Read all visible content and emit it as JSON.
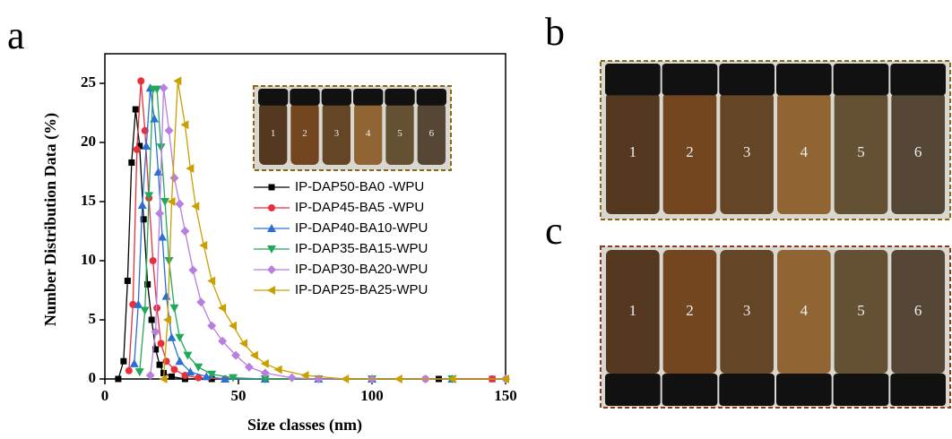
{
  "panel_labels": [
    "a",
    "b",
    "c"
  ],
  "chart_data": {
    "type": "line",
    "xlabel": "Size classes (nm)",
    "ylabel": "Number Distribution Data (%)",
    "xlim": [
      0,
      150
    ],
    "xticks": [
      0,
      50,
      100,
      150
    ],
    "ylim": [
      0,
      27.5
    ],
    "yticks": [
      0,
      5,
      10,
      15,
      20,
      25
    ],
    "legend": "right",
    "series": [
      {
        "name": "IP-DAP50-BA0 -WPU",
        "color": "#000000",
        "marker": "square",
        "x": [
          5,
          7,
          8.5,
          10,
          11.5,
          13,
          14.5,
          16,
          17.5,
          19,
          20.5,
          22,
          25,
          30,
          40,
          60,
          80,
          100,
          125,
          145
        ],
        "values": [
          0,
          1.5,
          8.3,
          18.3,
          22.8,
          19.7,
          13.5,
          8,
          5,
          2.5,
          1.2,
          0.5,
          0.2,
          0,
          0,
          0,
          0,
          0,
          0,
          0
        ]
      },
      {
        "name": "IP-DAP45-BA5 -WPU",
        "color": "#e8303a",
        "marker": "circle",
        "x": [
          9,
          10.5,
          12,
          13.5,
          15,
          16.5,
          18,
          19.5,
          21,
          23,
          26,
          30,
          35,
          45,
          60,
          80,
          100,
          120,
          145
        ],
        "values": [
          0.7,
          6.3,
          19.4,
          25.2,
          21,
          15.3,
          10,
          6,
          3,
          1.5,
          0.8,
          0.3,
          0.1,
          0,
          0,
          0,
          0,
          0,
          0
        ]
      },
      {
        "name": "IP-DAP40-BA10-WPU",
        "color": "#2b6fd6",
        "marker": "triangle-up",
        "x": [
          11,
          12.5,
          14,
          15.5,
          17,
          18.5,
          20,
          21.5,
          23,
          25,
          28,
          32,
          38,
          45,
          60,
          80,
          100,
          130
        ],
        "values": [
          1.3,
          6.3,
          14.7,
          19.7,
          24.6,
          22,
          17.5,
          12,
          7,
          3.5,
          1.5,
          0.6,
          0.2,
          0,
          0,
          0,
          0,
          0
        ]
      },
      {
        "name": "IP-DAP35-BA15-WPU",
        "color": "#22a85a",
        "marker": "triangle-down",
        "x": [
          13,
          15,
          16.5,
          18,
          19.5,
          21,
          22.5,
          24,
          26,
          28,
          31,
          35,
          40,
          48,
          60,
          80,
          100,
          130
        ],
        "values": [
          0.6,
          5.8,
          15.5,
          24.5,
          24.5,
          19.6,
          15,
          10,
          6,
          3.5,
          2,
          1,
          0.4,
          0.1,
          0,
          0,
          0,
          0
        ]
      },
      {
        "name": "IP-DAP30-BA20-WPU",
        "color": "#b77fe0",
        "marker": "diamond",
        "x": [
          17,
          19,
          20.5,
          22,
          24,
          26,
          28,
          30,
          33,
          36,
          40,
          44,
          49,
          54,
          60,
          70,
          80,
          100,
          120,
          150
        ],
        "values": [
          0.3,
          4,
          14,
          24.6,
          21,
          17,
          14.8,
          12.5,
          9.2,
          6.5,
          4.5,
          3.2,
          2,
          1,
          0.5,
          0.1,
          0,
          0,
          0,
          0
        ]
      },
      {
        "name": "IP-DAP25-BA25-WPU",
        "color": "#c9a000",
        "marker": "triangle-left",
        "x": [
          22,
          23.5,
          25,
          27.3,
          30,
          32,
          34,
          37,
          40,
          44,
          48,
          52,
          56,
          60,
          65,
          75,
          90,
          110,
          130,
          150
        ],
        "values": [
          0,
          5,
          15,
          25.2,
          21.5,
          17.8,
          14.6,
          11.3,
          8.3,
          6,
          4.5,
          3,
          2,
          1.3,
          0.8,
          0.3,
          0,
          0,
          0,
          0
        ]
      }
    ]
  },
  "photos": {
    "inset": {
      "labels": [
        "1",
        "2",
        "3",
        "4",
        "5",
        "6"
      ]
    },
    "b": {
      "labels": [
        "1",
        "2",
        "3",
        "4",
        "5",
        "6"
      ]
    },
    "c": {
      "labels": [
        "1",
        "2",
        "3",
        "4",
        "5",
        "6"
      ]
    }
  }
}
